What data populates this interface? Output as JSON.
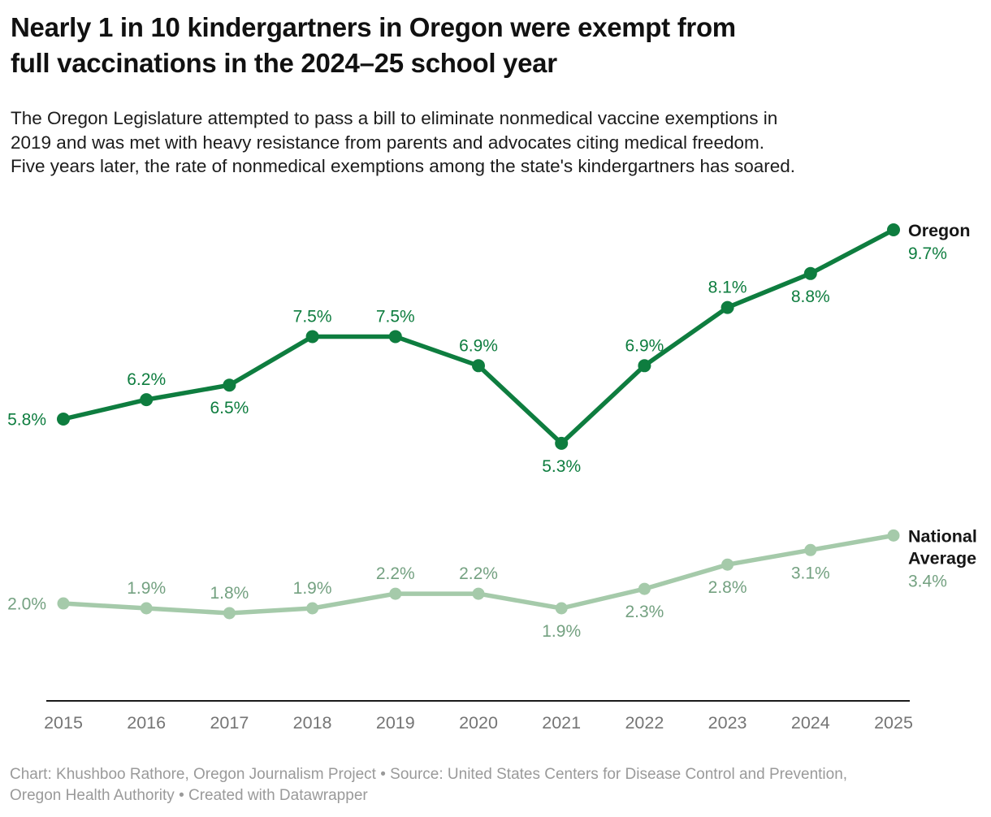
{
  "header": {
    "title": "Nearly 1 in 10 kindergartners in Oregon were exempt from full vaccinations in the 2024–25 school year",
    "title_lines": [
      "Nearly 1 in 10 kindergartners in Oregon were exempt from",
      "full vaccinations in the 2024–25 school year"
    ],
    "subtitle_lines": [
      "The Oregon Legislature attempted to pass a bill to eliminate nonmedical vaccine exemptions in",
      "2019 and was met with heavy resistance from parents and advocates citing medical freedom.",
      "Five years later, the rate of nonmedical exemptions among the state's kindergartners has soared."
    ]
  },
  "chart_data": {
    "type": "line",
    "title": "Nearly 1 in 10 kindergartners in Oregon were exempt from full vaccinations in the 2024–25 school year",
    "x": [
      "2015",
      "2016",
      "2017",
      "2018",
      "2019",
      "2020",
      "2021",
      "2022",
      "2023",
      "2024",
      "2025"
    ],
    "unit": "%",
    "ylim": [
      0,
      10.2
    ],
    "grid": false,
    "legend_position": "end-of-line",
    "axis_color": "#1a1a1a",
    "tick_label_color": "#757575",
    "series_name_color": "#161616",
    "series": [
      {
        "name": "Oregon",
        "color": "#0e7d3f",
        "label_color": "#0e7d3f",
        "values": [
          5.8,
          6.2,
          6.5,
          7.5,
          7.5,
          6.9,
          5.3,
          6.9,
          8.1,
          8.8,
          9.7
        ],
        "label_positions": [
          "left",
          "above",
          "below",
          "above",
          "above",
          "above",
          "below",
          "above",
          "above",
          "below",
          "end"
        ],
        "end_label_lines": [
          "Oregon"
        ],
        "point_radius": 8
      },
      {
        "name": "National Average",
        "color": "#a5caaa",
        "label_color": "#74a181",
        "values": [
          2.0,
          1.9,
          1.8,
          1.9,
          2.2,
          2.2,
          1.9,
          2.3,
          2.8,
          3.1,
          3.4
        ],
        "label_positions": [
          "left",
          "above",
          "above",
          "above",
          "above",
          "above",
          "below",
          "below",
          "below",
          "below",
          "end"
        ],
        "end_label_lines": [
          "National",
          "Average"
        ],
        "point_radius": 7.5
      }
    ]
  },
  "footer": {
    "credit": "Chart: Khushboo Rathore, Oregon Journalism Project • Source: United States Centers for Disease Control and Prevention, Oregon Health Authority • Created with Datawrapper",
    "credit_lines": [
      "Chart: Khushboo Rathore, Oregon Journalism Project • Source: United States Centers for Disease Control and Prevention,",
      "Oregon Health Authority • Created with Datawrapper"
    ]
  }
}
